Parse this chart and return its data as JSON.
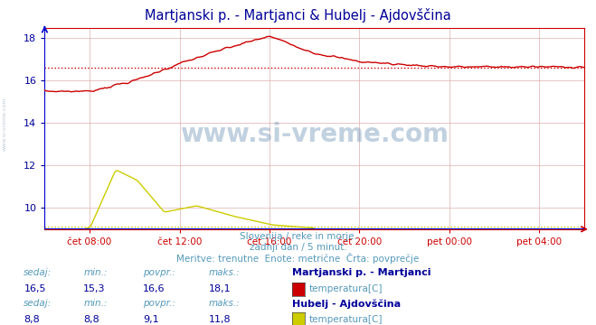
{
  "title": "Martjanski p. - Martjanci & Hubelj - Ajdovščina",
  "title_color": "#000099",
  "subtitle_lines": [
    "Slovenija / reke in morje.",
    "zadnji dan / 5 minut.",
    "Meritve: trenutne  Enote: metrične  Črta: povprečje"
  ],
  "subtitle_color": "#5599bb",
  "bg_color": "#ffffff",
  "plot_bg_color": "#ffffff",
  "grid_color": "#ddaaaa",
  "axis_x_color": "#cc0000",
  "axis_y_color": "#0000cc",
  "xlabel_color": "#000099",
  "ylabel_color": "#000099",
  "xticklabels": [
    "čet 08:00",
    "čet 12:00",
    "čet 16:00",
    "čet 20:00",
    "pet 00:00",
    "pet 04:00"
  ],
  "xtick_positions": [
    0.0833,
    0.25,
    0.4167,
    0.5833,
    0.75,
    0.9167
  ],
  "ylim_min": 9.0,
  "ylim_max": 18.5,
  "yticks": [
    10,
    12,
    14,
    16,
    18
  ],
  "watermark": "www.si-vreme.com",
  "series1_color": "#cc0000",
  "series1_avg": 16.6,
  "series2_color": "#cccc00",
  "series2_avg": 9.1,
  "legend_items": [
    {
      "label": "Martjanski p. - Martjanci",
      "color": "#cc0000",
      "sedaj": "16,5",
      "min": "15,3",
      "povpr": "16,6",
      "maks": "18,1",
      "meas": "temperatura[C]"
    },
    {
      "label": "Hubelj - Ajdovščina",
      "color": "#cccc00",
      "sedaj": "8,8",
      "min": "8,8",
      "povpr": "9,1",
      "maks": "11,8",
      "meas": "temperatura[C]"
    }
  ]
}
